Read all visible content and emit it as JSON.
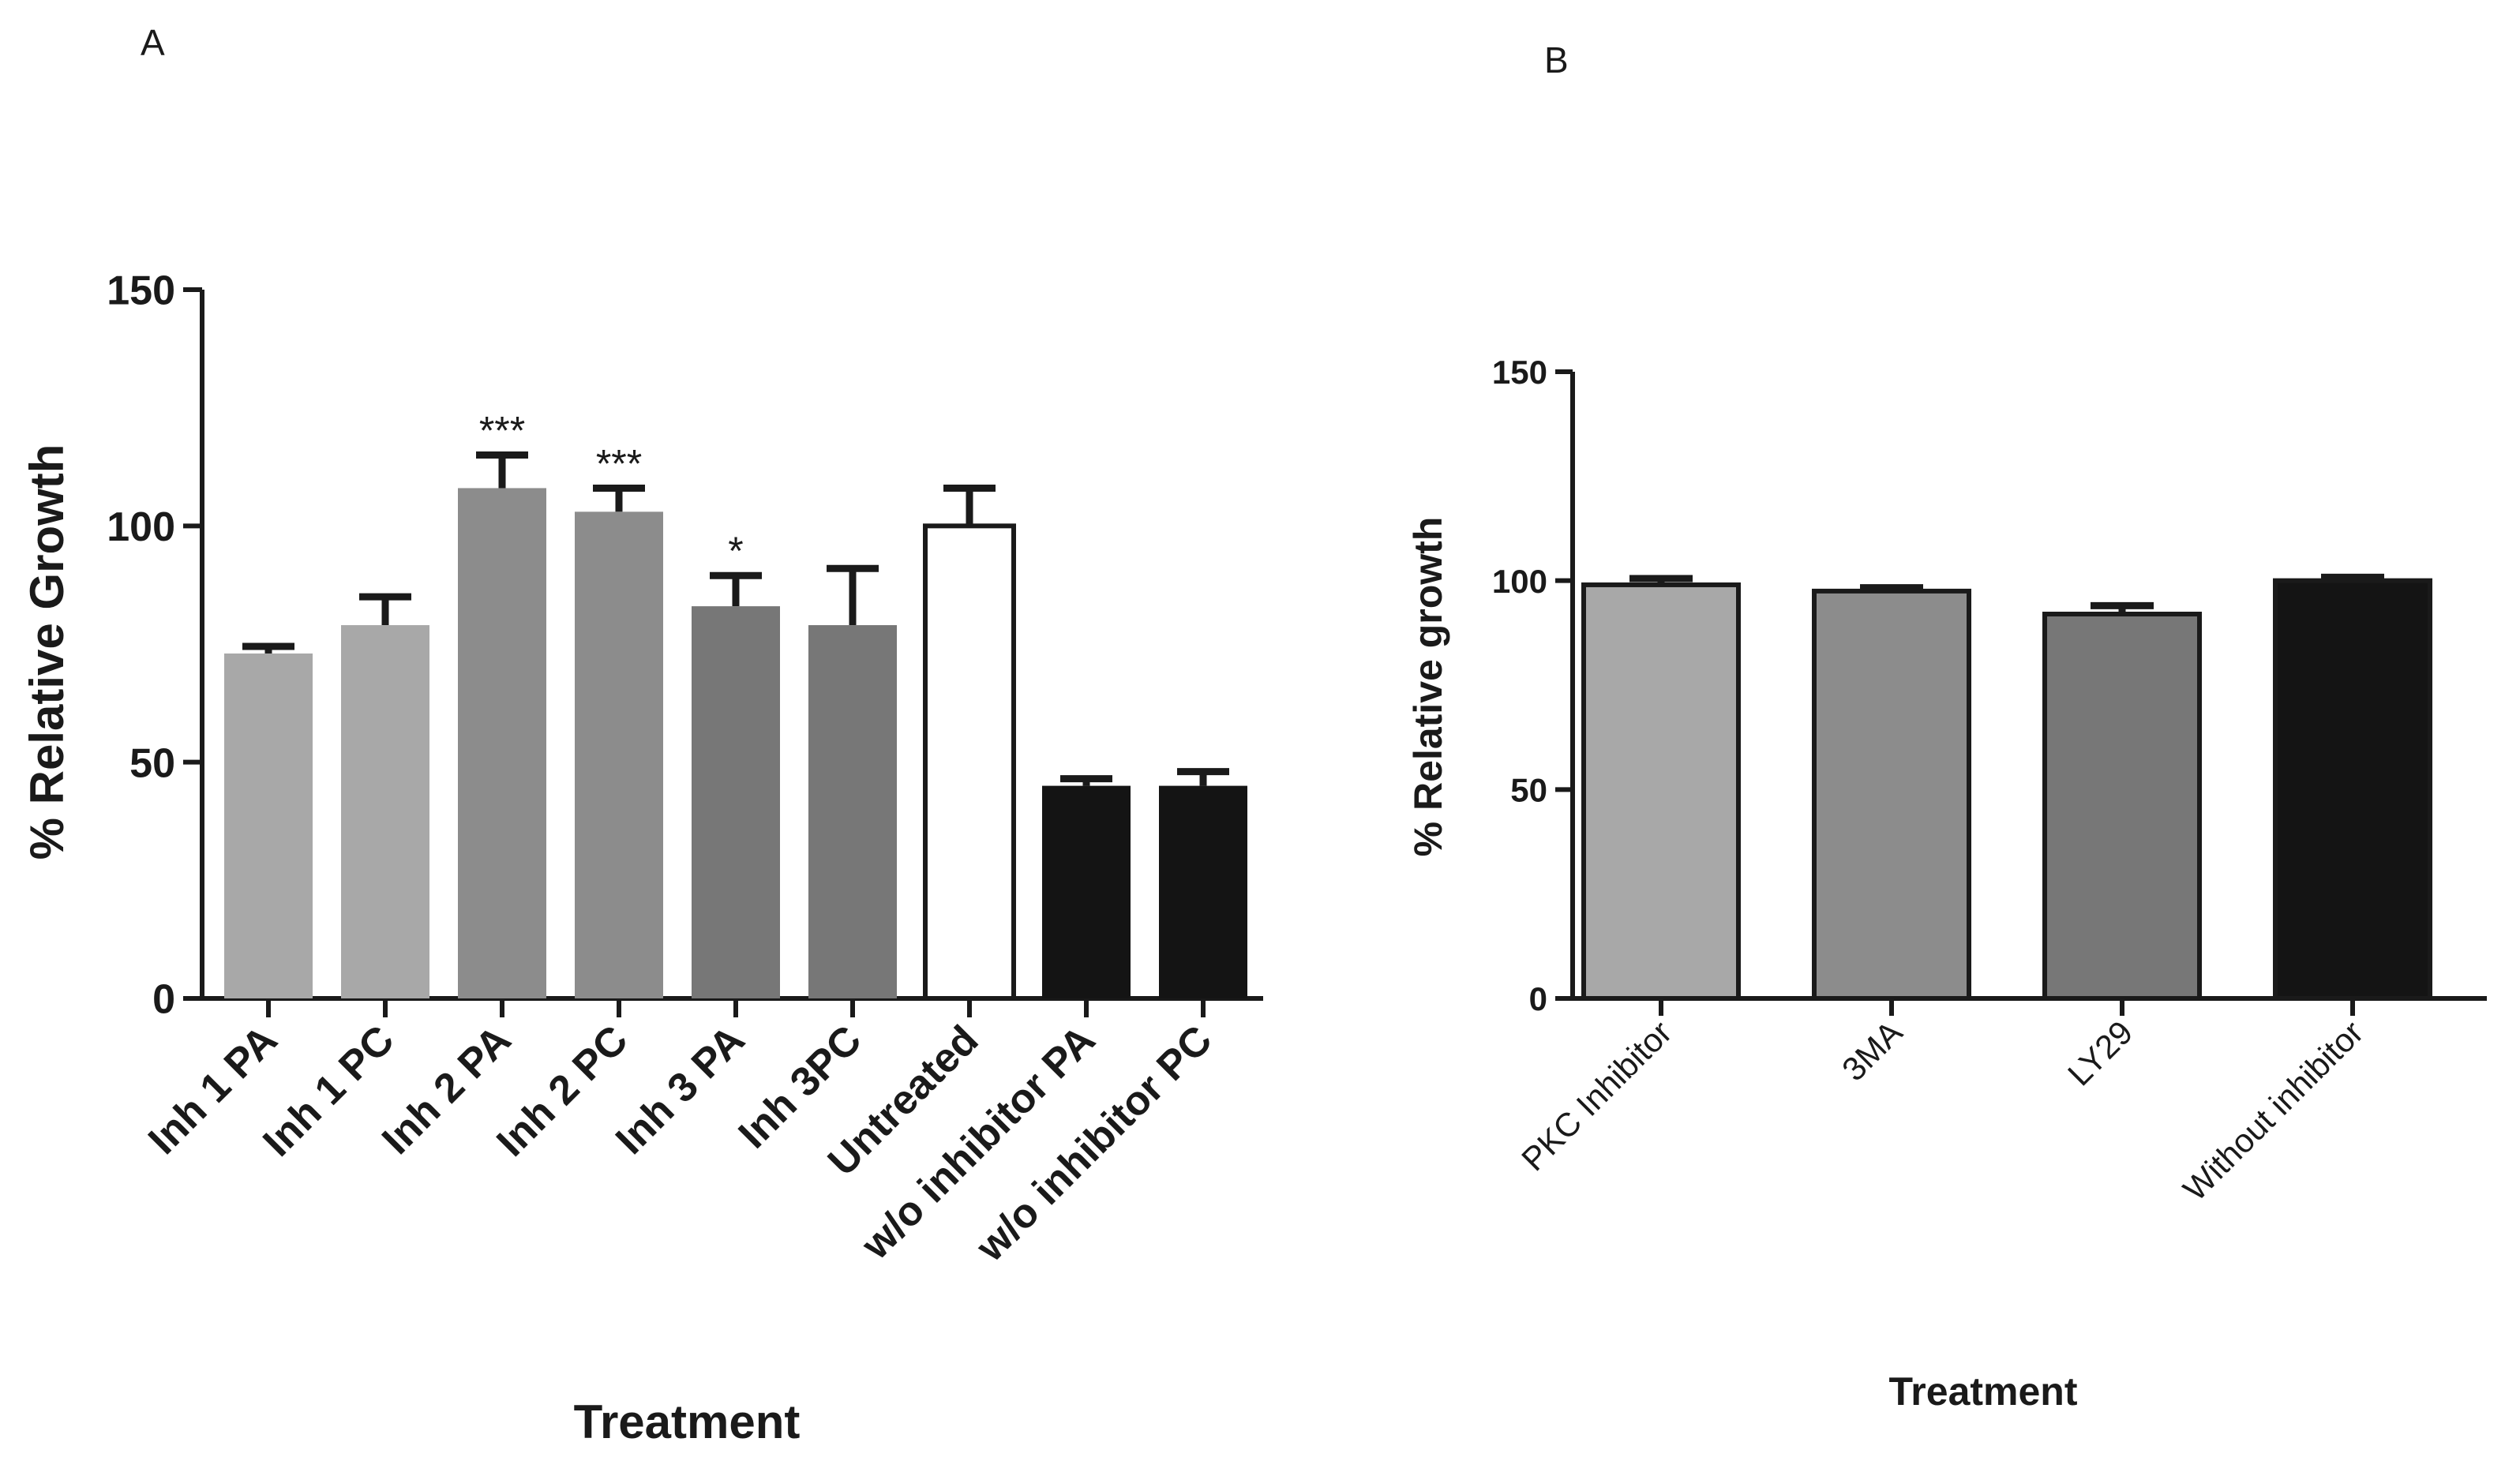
{
  "chart_data": [
    {
      "panel": "A",
      "type": "bar",
      "xlabel": "Treatment",
      "ylabel": "% Relative Growth",
      "ylim": [
        0,
        150
      ],
      "yticks": [
        0,
        50,
        100,
        150
      ],
      "categories": [
        "Inh 1 PA",
        "Inh 1 PC",
        "Inh 2 PA",
        "Inh 2 PC",
        "Inh 3 PA",
        "Inh 3PC",
        "Untreated",
        "w/o inhibitor PA",
        "w/o inhibitor PC"
      ],
      "values": [
        73,
        79,
        108,
        103,
        83,
        79,
        100,
        45,
        45
      ],
      "error": [
        1.5,
        6,
        7,
        5,
        6.5,
        12,
        8,
        1.5,
        3
      ],
      "significance": [
        "",
        "",
        "***",
        "***",
        "*",
        "",
        "",
        "",
        ""
      ],
      "colors": [
        "#a8a8a8",
        "#a8a8a8",
        "#8c8c8c",
        "#8c8c8c",
        "#777777",
        "#777777",
        "#ffffff",
        "#141414",
        "#141414"
      ]
    },
    {
      "panel": "B",
      "type": "bar",
      "xlabel": "Treatment",
      "ylabel": "% Relative growth",
      "ylim": [
        0,
        150
      ],
      "yticks": [
        0,
        50,
        100,
        150
      ],
      "categories": [
        "PKC Inhibitor",
        "3MA",
        "LY29",
        "Without inhibitor"
      ],
      "values": [
        99,
        97.5,
        92,
        100
      ],
      "error": [
        1.5,
        0.8,
        2,
        0.8
      ],
      "colors": [
        "#a8a8a8",
        "#8c8c8c",
        "#777777",
        "#141414"
      ]
    }
  ]
}
